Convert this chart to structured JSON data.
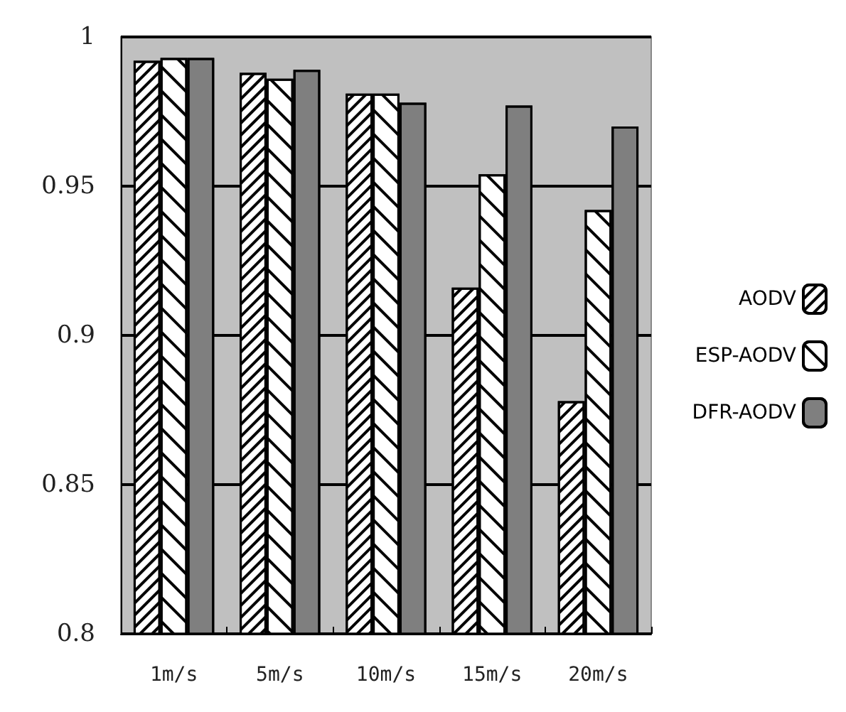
{
  "chart_data": {
    "type": "bar",
    "categories": [
      "1m/s",
      "5m/s",
      "10m/s",
      "15m/s",
      "20m/s"
    ],
    "series": [
      {
        "name": "AODV",
        "color": "#ffffff",
        "values": [
          0.992,
          0.988,
          0.981,
          0.916,
          0.878
        ]
      },
      {
        "name": "ESP-AODV",
        "color": "#ffffff",
        "values": [
          0.993,
          0.986,
          0.981,
          0.954,
          0.942
        ]
      },
      {
        "name": "DFR-AODV",
        "color": "#7f7f7f",
        "values": [
          0.993,
          0.989,
          0.978,
          0.977,
          0.97
        ]
      }
    ],
    "ylim": [
      0.8,
      1
    ],
    "yticks": [
      0.8,
      0.85,
      0.9,
      0.95,
      1
    ],
    "grid": "y",
    "legend": "right"
  }
}
